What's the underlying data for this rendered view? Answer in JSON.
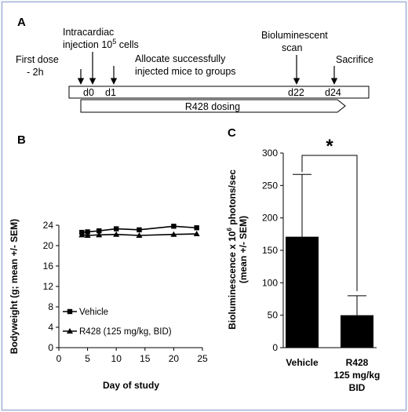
{
  "panels": {
    "a": {
      "letter": "A"
    },
    "b": {
      "letter": "B"
    },
    "c": {
      "letter": "C"
    }
  },
  "timeline": {
    "first_dose": [
      "First dose",
      "- 2h"
    ],
    "injection": [
      "Intracardiac",
      "injection 10",
      "5",
      " cells"
    ],
    "allocate": [
      "Allocate successfully",
      "injected mice to groups"
    ],
    "scan": [
      "Bioluminescent",
      "scan"
    ],
    "sacrifice": "Sacrifice",
    "days": [
      "d0",
      "d1",
      "d22",
      "d24"
    ],
    "dosing_label": "R428 dosing"
  },
  "chart_data": [
    {
      "type": "line",
      "xlabel": "Day of study",
      "ylabel": "Bodyweight (g; mean +/- SEM)",
      "xlim": [
        0,
        25
      ],
      "ylim": [
        0,
        24
      ],
      "xticks": [
        0,
        5,
        10,
        15,
        20,
        25
      ],
      "yticks": [
        0,
        4,
        8,
        12,
        16,
        20,
        24
      ],
      "x": [
        4,
        5,
        7,
        10,
        14,
        20,
        24
      ],
      "series": [
        {
          "name": "Vehicle",
          "marker": "square",
          "values": [
            22.6,
            22.7,
            22.9,
            23.3,
            23.1,
            23.8,
            23.5
          ]
        },
        {
          "name": "R428 (125 mg/kg, BID)",
          "marker": "triangle",
          "values": [
            22.1,
            22.0,
            22.1,
            22.2,
            22.0,
            22.2,
            22.3
          ]
        }
      ],
      "legend_position": "lower-left"
    },
    {
      "type": "bar",
      "ylabel_lines": [
        "Bioluminescence x 10",
        "6",
        " photons/sec",
        "(mean +/- SEM)"
      ],
      "ylim": [
        0,
        300
      ],
      "yticks": [
        0,
        50,
        100,
        150,
        200,
        250,
        300
      ],
      "categories": [
        [
          "Vehicle"
        ],
        [
          "R428",
          "125 mg/kg",
          "BID"
        ]
      ],
      "values": [
        171,
        50
      ],
      "errors": [
        96,
        30
      ],
      "significance": "*"
    }
  ]
}
